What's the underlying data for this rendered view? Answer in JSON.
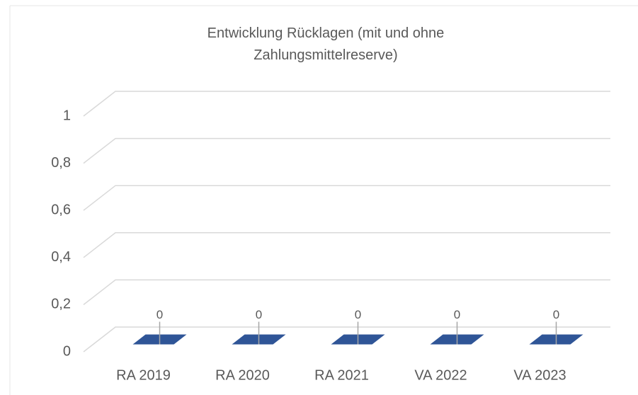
{
  "chart_data": {
    "type": "bar3d",
    "title": "Entwicklung Rücklagen (mit und ohne Zahlungsmittelreserve)",
    "categories": [
      "RA 2019",
      "RA 2020",
      "RA 2021",
      "VA 2022",
      "VA 2023"
    ],
    "values": [
      0,
      0,
      0,
      0,
      0
    ],
    "color": "#2f5597",
    "ylim": [
      0,
      1
    ],
    "yticks": [
      0,
      {
        "value": 0.2,
        "label": "0,2"
      },
      {
        "value": 0.4,
        "label": "0,4"
      },
      {
        "value": 0.6,
        "label": "0,6"
      },
      {
        "value": 0.8,
        "label": "0,8"
      },
      1
    ],
    "grid": true
  }
}
